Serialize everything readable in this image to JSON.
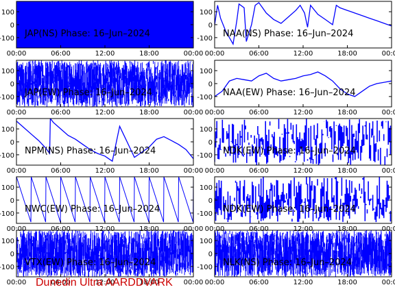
{
  "footer_label": "Dunedin Ultra AARDDVARK",
  "colors": {
    "trace": "#0000ff",
    "footer": "#cc0000",
    "axis": "#000000"
  },
  "chart_data": [
    {
      "type": "line",
      "title": "JAP(NS) Phase: 16–Jun–2024",
      "x_ticks": [
        "00:00",
        "06:00",
        "12:00",
        "18:00",
        "00:00"
      ],
      "y_ticks": [
        100,
        0,
        -100
      ],
      "xlim_hours": [
        0,
        24
      ],
      "ylim": [
        -180,
        180
      ],
      "grid": false,
      "series": [
        {
          "pattern": "solid_band",
          "x_hours": [
            0,
            24
          ],
          "y": [
            -180,
            180
          ]
        }
      ]
    },
    {
      "type": "line",
      "title": "NAA(NS) Phase: 16–Jun–2024",
      "x_ticks": [
        "00:00",
        "06:00",
        "12:00",
        "18:00",
        "00:00"
      ],
      "y_ticks": [
        100,
        0,
        -100
      ],
      "xlim_hours": [
        0,
        24
      ],
      "ylim": [
        -180,
        180
      ],
      "grid": false,
      "series": [
        {
          "pattern": "trace",
          "x_hours": [
            0,
            0.4,
            0.8,
            1.5,
            2.5,
            3.0,
            3.3,
            4.0,
            4.3,
            5.0,
            5.5,
            6.0,
            7.0,
            8.0,
            9.0,
            10.0,
            11.0,
            11.6,
            12.2,
            12.6,
            13.0,
            14.0,
            15.0,
            16.0,
            16.5,
            17.0,
            18.0,
            19.0,
            20.0,
            21.0,
            22.0,
            23.0,
            24.0
          ],
          "y": [
            0,
            150,
            50,
            -50,
            -150,
            30,
            160,
            130,
            -130,
            0,
            150,
            170,
            90,
            40,
            10,
            60,
            110,
            150,
            90,
            -20,
            150,
            80,
            40,
            0,
            150,
            130,
            110,
            90,
            70,
            50,
            30,
            10,
            -10
          ]
        }
      ]
    },
    {
      "type": "line",
      "title": "JAP(EW) Phase: 16–Jun–2024",
      "x_ticks": [
        "00:00",
        "06:00",
        "12:00",
        "18:00",
        "00:00"
      ],
      "y_ticks": [
        100,
        0,
        -100
      ],
      "xlim_hours": [
        0,
        24
      ],
      "ylim": [
        -180,
        180
      ],
      "grid": false,
      "series": [
        {
          "pattern": "dense_noise",
          "x_hours": [
            0,
            24
          ],
          "y": [
            -180,
            180
          ]
        }
      ]
    },
    {
      "type": "line",
      "title": "NAA(EW) Phase: 16–Jun–2024",
      "x_ticks": [
        "00:00",
        "06:00",
        "12:00",
        "18:00",
        "00:00"
      ],
      "y_ticks": [
        100,
        0,
        -100
      ],
      "xlim_hours": [
        0,
        24
      ],
      "ylim": [
        -180,
        180
      ],
      "grid": false,
      "series": [
        {
          "pattern": "trace",
          "x_hours": [
            0,
            1,
            2,
            3,
            4,
            5,
            6,
            7,
            8,
            9,
            10,
            11,
            12,
            13,
            14,
            15,
            16,
            17,
            18,
            19,
            20,
            21,
            22,
            23,
            24
          ],
          "y": [
            -100,
            -60,
            20,
            40,
            30,
            20,
            60,
            80,
            40,
            20,
            30,
            40,
            60,
            70,
            90,
            60,
            20,
            -40,
            -80,
            -100,
            -60,
            -20,
            0,
            10,
            20
          ]
        }
      ]
    },
    {
      "type": "line",
      "title": "NPM(NS) Phase: 16–Jun–2024",
      "x_ticks": [
        "00:00",
        "06:00",
        "12:00",
        "18:00",
        "00:00"
      ],
      "y_ticks": [
        100,
        0,
        -100
      ],
      "xlim_hours": [
        0,
        24
      ],
      "ylim": [
        -180,
        180
      ],
      "grid": false,
      "series": [
        {
          "pattern": "trace",
          "x_hours": [
            0,
            1,
            2,
            3,
            4,
            4.5,
            4.6,
            5,
            6,
            7,
            8,
            9,
            10,
            11,
            12,
            13,
            14,
            15,
            16,
            17,
            18,
            19,
            20,
            21,
            22,
            23,
            24
          ],
          "y": [
            160,
            110,
            60,
            10,
            -50,
            -90,
            180,
            150,
            100,
            50,
            20,
            -20,
            -60,
            -90,
            -110,
            -150,
            120,
            0,
            -120,
            -80,
            -40,
            20,
            40,
            10,
            -20,
            -60,
            -130
          ]
        }
      ]
    },
    {
      "type": "line",
      "title": "NDK(EW) Phase: 16–Jun–2024",
      "x_ticks": [
        "00:00",
        "06:00",
        "12:00",
        "18:00",
        "00:00"
      ],
      "y_ticks": [
        100,
        0,
        -100
      ],
      "xlim_hours": [
        0,
        24
      ],
      "ylim": [
        -180,
        180
      ],
      "grid": false,
      "series": [
        {
          "pattern": "sparse_spikes",
          "x_hours": [
            0,
            24
          ],
          "y": [
            -180,
            180
          ]
        }
      ]
    },
    {
      "type": "line",
      "title": "NWC(EW) Phase: 16–Jun–2024",
      "x_ticks": [
        "00:00",
        "06:00",
        "12:00",
        "18:00",
        "00:00"
      ],
      "y_ticks": [
        100,
        0,
        -100
      ],
      "xlim_hours": [
        0,
        24
      ],
      "ylim": [
        -180,
        180
      ],
      "grid": false,
      "series": [
        {
          "pattern": "sawtooth",
          "period_hours": 2,
          "x_hours": [
            0,
            24
          ],
          "y": [
            -180,
            180
          ]
        }
      ]
    },
    {
      "type": "line",
      "title": "NDK(EW) Phase: 16–Jun–2024",
      "x_ticks": [
        "00:00",
        "06:00",
        "12:00",
        "18:00",
        "00:00"
      ],
      "y_ticks": [
        100,
        0,
        -100
      ],
      "xlim_hours": [
        0,
        24
      ],
      "ylim": [
        -180,
        180
      ],
      "grid": false,
      "series": [
        {
          "pattern": "sparse_spikes",
          "x_hours": [
            0,
            24
          ],
          "y": [
            -180,
            180
          ]
        }
      ]
    },
    {
      "type": "line",
      "title": "VTX(EW) Phase: 16–Jun–2024",
      "x_ticks": [
        "00:00",
        "06:00",
        "12:00",
        "18:00",
        "00:00"
      ],
      "y_ticks": [
        100,
        0,
        -100
      ],
      "xlim_hours": [
        0,
        24
      ],
      "ylim": [
        -180,
        180
      ],
      "grid": false,
      "series": [
        {
          "pattern": "dense_noise",
          "x_hours": [
            0,
            24
          ],
          "y": [
            -180,
            180
          ]
        }
      ]
    },
    {
      "type": "line",
      "title": "NLK(NS) Phase: 16–Jun–2024",
      "x_ticks": [
        "00:00",
        "06:00",
        "12:00",
        "18:00",
        "00:00"
      ],
      "y_ticks": [
        100,
        0,
        -100
      ],
      "xlim_hours": [
        0,
        24
      ],
      "ylim": [
        -180,
        180
      ],
      "grid": false,
      "series": [
        {
          "pattern": "dense_noise",
          "x_hours": [
            0,
            24
          ],
          "y": [
            -180,
            180
          ]
        }
      ]
    }
  ]
}
